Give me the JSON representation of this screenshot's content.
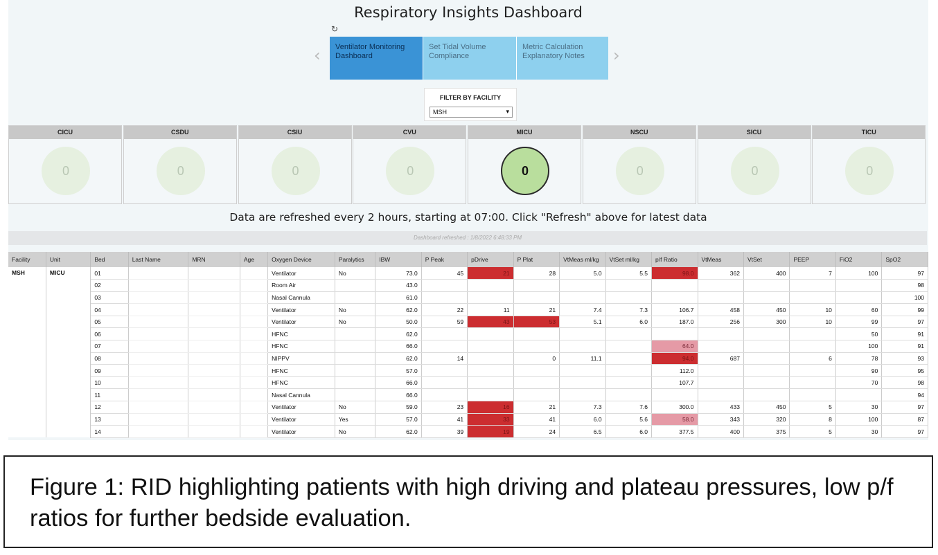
{
  "app": {
    "title": "Respiratory Insights Dashboard"
  },
  "icons": {
    "refresh": "refresh-icon",
    "prev": "chevron-left-icon",
    "next": "chevron-right-icon",
    "dropdown": "caret-down-icon"
  },
  "nav": {
    "tabs": [
      {
        "label": "Ventilator Monitoring Dashboard",
        "active": true
      },
      {
        "label": "Set Tidal Volume Compliance",
        "active": false
      },
      {
        "label": "Metric Calculation Explanatory Notes",
        "active": false
      }
    ]
  },
  "filter": {
    "label": "FILTER BY FACILITY",
    "value": "MSH"
  },
  "units": [
    {
      "name": "CICU",
      "count": "0",
      "active": false
    },
    {
      "name": "CSDU",
      "count": "0",
      "active": false
    },
    {
      "name": "CSIU",
      "count": "0",
      "active": false
    },
    {
      "name": "CVU",
      "count": "0",
      "active": false
    },
    {
      "name": "MICU",
      "count": "0",
      "active": true
    },
    {
      "name": "NSCU",
      "count": "0",
      "active": false
    },
    {
      "name": "SICU",
      "count": "0",
      "active": false
    },
    {
      "name": "TICU",
      "count": "0",
      "active": false
    }
  ],
  "refresh_note": "Data are refreshed every 2 hours, starting at 07:00. Click \"Refresh\" above for latest data",
  "refreshed_label": "Dashboard refreshed : 1/8/2022 6:48:33 PM",
  "colors": {
    "high": "#cc2d30",
    "low": "#e59aa6",
    "active_tab": "#3a93d6",
    "tab": "#8ed0ee",
    "active_unit": "#b9de9d"
  },
  "table": {
    "columns": [
      "Facility",
      "Unit",
      "Bed",
      "Last Name",
      "MRN",
      "Age",
      "Oxygen Device",
      "Paralytics",
      "IBW",
      "P Peak",
      "pDrive",
      "P Plat",
      "VtMeas ml/kg",
      "VtSet ml/kg",
      "p/f Ratio",
      "VtMeas",
      "VtSet",
      "PEEP",
      "FiO2",
      "SpO2"
    ],
    "facility": "MSH",
    "unit": "MICU",
    "rows": [
      {
        "bed": "01",
        "device": "Ventilator",
        "paralytics": "No",
        "ibw": "73.0",
        "ppeak": "45",
        "pdrive": "21",
        "pplat": "28",
        "vtmeas_kg": "5.0",
        "vtset_kg": "5.5",
        "pf": "98.0",
        "vtmeas": "362",
        "vtset": "400",
        "peep": "7",
        "fio2": "100",
        "spo2": "97",
        "flags": {
          "pdrive": "hi",
          "pf": "hi"
        }
      },
      {
        "bed": "02",
        "device": "Room Air",
        "paralytics": "",
        "ibw": "43.0",
        "ppeak": "",
        "pdrive": "",
        "pplat": "",
        "vtmeas_kg": "",
        "vtset_kg": "",
        "pf": "",
        "vtmeas": "",
        "vtset": "",
        "peep": "",
        "fio2": "",
        "spo2": "98",
        "flags": {}
      },
      {
        "bed": "03",
        "device": "Nasal Cannula",
        "paralytics": "",
        "ibw": "61.0",
        "ppeak": "",
        "pdrive": "",
        "pplat": "",
        "vtmeas_kg": "",
        "vtset_kg": "",
        "pf": "",
        "vtmeas": "",
        "vtset": "",
        "peep": "",
        "fio2": "",
        "spo2": "100",
        "flags": {}
      },
      {
        "bed": "04",
        "device": "Ventilator",
        "paralytics": "No",
        "ibw": "62.0",
        "ppeak": "22",
        "pdrive": "11",
        "pplat": "21",
        "vtmeas_kg": "7.4",
        "vtset_kg": "7.3",
        "pf": "106.7",
        "vtmeas": "458",
        "vtset": "450",
        "peep": "10",
        "fio2": "60",
        "spo2": "99",
        "flags": {}
      },
      {
        "bed": "05",
        "device": "Ventilator",
        "paralytics": "No",
        "ibw": "50.0",
        "ppeak": "59",
        "pdrive": "43",
        "pplat": "53",
        "vtmeas_kg": "5.1",
        "vtset_kg": "6.0",
        "pf": "187.0",
        "vtmeas": "256",
        "vtset": "300",
        "peep": "10",
        "fio2": "99",
        "spo2": "97",
        "flags": {
          "pdrive": "hi",
          "pplat": "hi"
        }
      },
      {
        "bed": "06",
        "device": "HFNC",
        "paralytics": "",
        "ibw": "62.0",
        "ppeak": "",
        "pdrive": "",
        "pplat": "",
        "vtmeas_kg": "",
        "vtset_kg": "",
        "pf": "",
        "vtmeas": "",
        "vtset": "",
        "peep": "",
        "fio2": "50",
        "spo2": "91",
        "flags": {}
      },
      {
        "bed": "07",
        "device": "HFNC",
        "paralytics": "",
        "ibw": "66.0",
        "ppeak": "",
        "pdrive": "",
        "pplat": "",
        "vtmeas_kg": "",
        "vtset_kg": "",
        "pf": "64.0",
        "vtmeas": "",
        "vtset": "",
        "peep": "",
        "fio2": "100",
        "spo2": "91",
        "flags": {
          "pf": "lo"
        }
      },
      {
        "bed": "08",
        "device": "NIPPV",
        "paralytics": "",
        "ibw": "62.0",
        "ppeak": "14",
        "pdrive": "",
        "pplat": "0",
        "vtmeas_kg": "11.1",
        "vtset_kg": "",
        "pf": "94.0",
        "vtmeas": "687",
        "vtset": "",
        "peep": "6",
        "fio2": "78",
        "spo2": "93",
        "flags": {
          "pf": "hi"
        }
      },
      {
        "bed": "09",
        "device": "HFNC",
        "paralytics": "",
        "ibw": "57.0",
        "ppeak": "",
        "pdrive": "",
        "pplat": "",
        "vtmeas_kg": "",
        "vtset_kg": "",
        "pf": "112.0",
        "vtmeas": "",
        "vtset": "",
        "peep": "",
        "fio2": "90",
        "spo2": "95",
        "flags": {}
      },
      {
        "bed": "10",
        "device": "HFNC",
        "paralytics": "",
        "ibw": "66.0",
        "ppeak": "",
        "pdrive": "",
        "pplat": "",
        "vtmeas_kg": "",
        "vtset_kg": "",
        "pf": "107.7",
        "vtmeas": "",
        "vtset": "",
        "peep": "",
        "fio2": "70",
        "spo2": "98",
        "flags": {}
      },
      {
        "bed": "11",
        "device": "Nasal Cannula",
        "paralytics": "",
        "ibw": "66.0",
        "ppeak": "",
        "pdrive": "",
        "pplat": "",
        "vtmeas_kg": "",
        "vtset_kg": "",
        "pf": "",
        "vtmeas": "",
        "vtset": "",
        "peep": "",
        "fio2": "",
        "spo2": "94",
        "flags": {}
      },
      {
        "bed": "12",
        "device": "Ventilator",
        "paralytics": "No",
        "ibw": "59.0",
        "ppeak": "23",
        "pdrive": "16",
        "pplat": "21",
        "vtmeas_kg": "7.3",
        "vtset_kg": "7.6",
        "pf": "300.0",
        "vtmeas": "433",
        "vtset": "450",
        "peep": "5",
        "fio2": "30",
        "spo2": "97",
        "flags": {
          "pdrive": "hi"
        }
      },
      {
        "bed": "13",
        "device": "Ventilator",
        "paralytics": "Yes",
        "ibw": "57.0",
        "ppeak": "41",
        "pdrive": "33",
        "pplat": "41",
        "vtmeas_kg": "6.0",
        "vtset_kg": "5.6",
        "pf": "58.0",
        "vtmeas": "343",
        "vtset": "320",
        "peep": "8",
        "fio2": "100",
        "spo2": "87",
        "flags": {
          "pdrive": "hi",
          "pf": "lo"
        }
      },
      {
        "bed": "14",
        "device": "Ventilator",
        "paralytics": "No",
        "ibw": "62.0",
        "ppeak": "39",
        "pdrive": "19",
        "pplat": "24",
        "vtmeas_kg": "6.5",
        "vtset_kg": "6.0",
        "pf": "377.5",
        "vtmeas": "400",
        "vtset": "375",
        "peep": "5",
        "fio2": "30",
        "spo2": "97",
        "flags": {
          "pdrive": "hi"
        }
      }
    ]
  },
  "caption": "Figure 1: RID highlighting patients with high driving and plateau pressures, low p/f ratios for further bedside evaluation."
}
